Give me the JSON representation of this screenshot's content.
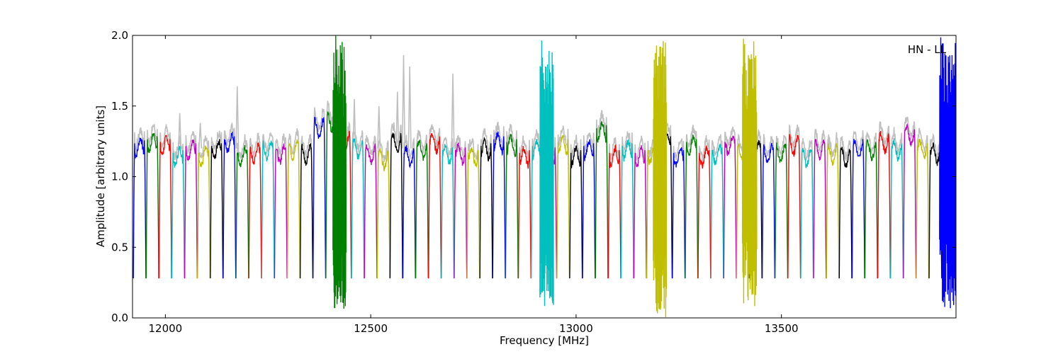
{
  "chart_data": {
    "type": "line",
    "title": "",
    "xlabel": "Frequency [MHz]",
    "ylabel": "Amplitude [arbitrary units]",
    "xlim": [
      11920,
      13925
    ],
    "ylim": [
      0.0,
      2.0
    ],
    "xticks": [
      12000,
      12500,
      13000,
      13500
    ],
    "xtick_labels": [
      "12000",
      "12500",
      "13000",
      "13500"
    ],
    "yticks": [
      0.0,
      0.5,
      1.0,
      1.5,
      2.0
    ],
    "ytick_labels": [
      "0.0",
      "0.5",
      "1.0",
      "1.5",
      "2.0"
    ],
    "grid": false,
    "annotation": "HN - LL",
    "background_series_color": "#bfbfbf",
    "color_cycle": [
      "#0000ff",
      "#008000",
      "#ff0000",
      "#00bfbf",
      "#bf00bf",
      "#bfbf00",
      "#000000"
    ],
    "channel_width_mhz": 31.25,
    "first_channel_start_mhz": 11922,
    "channel_count": 64,
    "channel_peak_levels": [
      1.27,
      1.3,
      1.28,
      1.2,
      1.25,
      1.2,
      1.25,
      1.3,
      1.2,
      1.22,
      1.25,
      1.22,
      1.25,
      1.22,
      1.4,
      1.45,
      1.3,
      1.26,
      1.22,
      1.18,
      1.3,
      1.2,
      1.25,
      1.3,
      1.22,
      1.22,
      1.2,
      1.25,
      1.3,
      1.28,
      1.2,
      1.25,
      1.22,
      1.28,
      1.2,
      1.25,
      1.38,
      1.2,
      1.25,
      1.2,
      1.22,
      1.3,
      1.2,
      1.28,
      1.2,
      1.22,
      1.28,
      1.25,
      1.25,
      1.22,
      1.22,
      1.28,
      1.2,
      1.25,
      1.22,
      1.2,
      1.25,
      1.25,
      1.3,
      1.25,
      1.35,
      1.25,
      1.22,
      1.2
    ],
    "spikes_gray": [
      {
        "x": 12175,
        "y": 1.64
      },
      {
        "x": 12420,
        "y": 1.9
      },
      {
        "x": 12460,
        "y": 1.55
      },
      {
        "x": 12520,
        "y": 1.5
      },
      {
        "x": 12565,
        "y": 1.6
      },
      {
        "x": 12580,
        "y": 1.86
      },
      {
        "x": 12595,
        "y": 1.78
      },
      {
        "x": 12700,
        "y": 1.73
      },
      {
        "x": 12035,
        "y": 1.45
      },
      {
        "x": 12085,
        "y": 1.38
      }
    ],
    "disturbances": [
      {
        "x_start": 12408,
        "x_end": 12440,
        "color": "#008000",
        "ymin": 0.05,
        "ymax": 2.0
      },
      {
        "x_start": 12912,
        "x_end": 12945,
        "color": "#00bfbf",
        "ymin": 0.08,
        "ymax": 2.0
      },
      {
        "x_start": 13188,
        "x_end": 13220,
        "color": "#bfbf00",
        "ymin": 0.0,
        "ymax": 2.0
      },
      {
        "x_start": 13405,
        "x_end": 13440,
        "color": "#bfbf00",
        "ymin": 0.07,
        "ymax": 2.0
      },
      {
        "x_start": 13885,
        "x_end": 13925,
        "color": "#0000ff",
        "ymin": 0.06,
        "ymax": 2.0
      }
    ]
  }
}
